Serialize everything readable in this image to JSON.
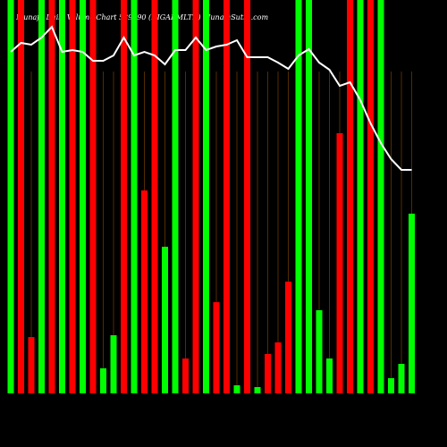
{
  "chart_data": {
    "type": "bar",
    "title": "Munafa Daily Volume Chart 539990 (DIGARMLTD) MunafaSutra.com",
    "values": [
      440,
      440,
      63,
      440,
      440,
      440,
      440,
      440,
      440,
      28,
      65,
      440,
      440,
      227,
      440,
      164,
      440,
      39,
      440,
      440,
      102,
      440,
      9,
      440,
      7,
      44,
      57,
      125,
      440,
      440,
      93,
      39,
      291,
      440,
      440,
      440,
      440,
      17,
      33,
      201
    ],
    "colors": [
      "#00ff00",
      "#ff0000",
      "#ff0000",
      "#00ff00",
      "#ff0000",
      "#00ff00",
      "#ff0000",
      "#00ff00",
      "#ff0000",
      "#00ff00",
      "#00ff00",
      "#ff0000",
      "#00ff00",
      "#ff0000",
      "#ff0000",
      "#00ff00",
      "#00ff00",
      "#ff0000",
      "#ff0000",
      "#00ff00",
      "#ff0000",
      "#ff0000",
      "#00ff00",
      "#ff0000",
      "#00ff00",
      "#ff0000",
      "#ff0000",
      "#ff0000",
      "#00ff00",
      "#00ff00",
      "#00ff00",
      "#00ff00",
      "#ff0000",
      "#ff0000",
      "#00ff00",
      "#ff0000",
      "#00ff00",
      "#00ff00",
      "#00ff00",
      "#00ff00"
    ],
    "price": [
      382,
      392,
      390,
      398,
      410,
      382,
      384,
      382,
      372,
      372,
      378,
      398,
      378,
      382,
      378,
      368,
      384,
      384,
      398,
      384,
      388,
      390,
      395,
      376,
      376,
      376,
      370,
      363,
      378,
      385,
      370,
      362,
      344,
      348,
      328,
      302,
      280,
      262,
      250,
      250
    ],
    "ylim": [
      0,
      440
    ],
    "line_color": "#ffffff"
  }
}
